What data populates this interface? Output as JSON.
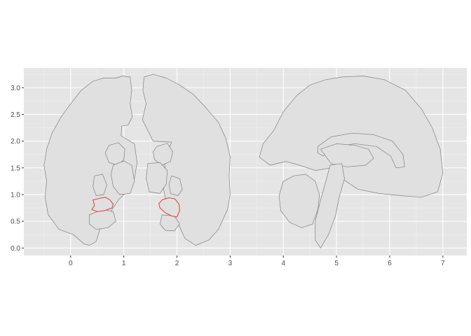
{
  "chart_data": {
    "type": "map",
    "title": "",
    "xlabel": "",
    "ylabel": "",
    "xlim": [
      -0.88,
      7.45
    ],
    "ylim": [
      -0.14,
      3.37
    ],
    "x_ticks": [
      0,
      1,
      2,
      3,
      4,
      5,
      6,
      7
    ],
    "y_ticks": [
      0.0,
      0.5,
      1.0,
      1.5,
      2.0,
      2.5,
      3.0
    ],
    "x_tick_labels": [
      "0",
      "1",
      "2",
      "3",
      "4",
      "5",
      "6",
      "7"
    ],
    "y_tick_labels": [
      "0.0",
      "0.5",
      "1.0",
      "1.5",
      "2.0",
      "2.5",
      "3.0"
    ],
    "grid": true,
    "legend": "none",
    "colors": {
      "panel": "#e5e5e5",
      "grid_major": "#ffffff",
      "grid_minor": "#f2f2f2",
      "region_fill": "#e0e0e0",
      "region_outline": "#808080",
      "highlight_outline": "#e8383b"
    },
    "views": [
      {
        "name": "coronal",
        "regions": [
          {
            "id": "left-hemisphere",
            "highlight": false,
            "points": [
              [
                0.42,
                3.12
              ],
              [
                0.62,
                3.18
              ],
              [
                0.85,
                3.18
              ],
              [
                0.98,
                3.22
              ],
              [
                1.12,
                3.2
              ],
              [
                1.15,
                2.95
              ],
              [
                1.12,
                2.7
              ],
              [
                1.16,
                2.45
              ],
              [
                1.08,
                2.3
              ],
              [
                0.96,
                2.28
              ],
              [
                0.95,
                2.1
              ],
              [
                1.2,
                1.95
              ],
              [
                1.25,
                1.6
              ],
              [
                1.2,
                1.3
              ],
              [
                1.05,
                1.05
              ],
              [
                0.9,
                0.9
              ],
              [
                0.78,
                0.72
              ],
              [
                0.7,
                0.5
              ],
              [
                0.55,
                0.35
              ],
              [
                0.48,
                0.12
              ],
              [
                0.35,
                0.05
              ],
              [
                0.25,
                0.08
              ],
              [
                0.05,
                0.25
              ],
              [
                -0.22,
                0.35
              ],
              [
                -0.42,
                0.62
              ],
              [
                -0.48,
                0.95
              ],
              [
                -0.45,
                1.25
              ],
              [
                -0.5,
                1.55
              ],
              [
                -0.45,
                1.85
              ],
              [
                -0.35,
                2.15
              ],
              [
                -0.18,
                2.45
              ],
              [
                0.0,
                2.7
              ],
              [
                0.2,
                2.95
              ]
            ]
          },
          {
            "id": "right-hemisphere",
            "highlight": false,
            "points": [
              [
                1.38,
                3.2
              ],
              [
                1.55,
                3.25
              ],
              [
                1.8,
                3.18
              ],
              [
                2.05,
                3.05
              ],
              [
                2.3,
                2.88
              ],
              [
                2.55,
                2.62
              ],
              [
                2.78,
                2.35
              ],
              [
                2.92,
                2.05
              ],
              [
                3.0,
                1.7
              ],
              [
                2.98,
                1.35
              ],
              [
                3.0,
                1.0
              ],
              [
                2.95,
                0.72
              ],
              [
                2.78,
                0.35
              ],
              [
                2.6,
                0.15
              ],
              [
                2.35,
                0.05
              ],
              [
                2.15,
                0.18
              ],
              [
                2.05,
                0.4
              ],
              [
                1.95,
                0.6
              ],
              [
                1.8,
                0.82
              ],
              [
                1.75,
                1.1
              ],
              [
                1.8,
                1.4
              ],
              [
                1.75,
                1.65
              ],
              [
                1.9,
                1.98
              ],
              [
                1.55,
                2.0
              ],
              [
                1.45,
                2.2
              ],
              [
                1.35,
                2.4
              ],
              [
                1.42,
                2.7
              ],
              [
                1.36,
                2.95
              ]
            ]
          },
          {
            "id": "left-caudate",
            "highlight": false,
            "points": [
              [
                0.72,
                1.92
              ],
              [
                0.9,
                1.97
              ],
              [
                1.02,
                1.85
              ],
              [
                1.0,
                1.65
              ],
              [
                0.88,
                1.55
              ],
              [
                0.72,
                1.6
              ],
              [
                0.65,
                1.78
              ]
            ]
          },
          {
            "id": "right-caudate",
            "highlight": false,
            "points": [
              [
                1.62,
                1.9
              ],
              [
                1.82,
                1.96
              ],
              [
                1.92,
                1.8
              ],
              [
                1.88,
                1.62
              ],
              [
                1.72,
                1.55
              ],
              [
                1.58,
                1.65
              ],
              [
                1.55,
                1.8
              ]
            ]
          },
          {
            "id": "left-thalamus",
            "highlight": false,
            "points": [
              [
                0.8,
                1.55
              ],
              [
                1.0,
                1.63
              ],
              [
                1.15,
                1.55
              ],
              [
                1.2,
                1.25
              ],
              [
                1.12,
                1.02
              ],
              [
                0.92,
                1.0
              ],
              [
                0.8,
                1.15
              ],
              [
                0.76,
                1.38
              ]
            ]
          },
          {
            "id": "right-thalamus",
            "highlight": false,
            "points": [
              [
                1.45,
                1.58
              ],
              [
                1.68,
                1.6
              ],
              [
                1.82,
                1.45
              ],
              [
                1.8,
                1.2
              ],
              [
                1.68,
                1.02
              ],
              [
                1.48,
                1.05
              ],
              [
                1.42,
                1.3
              ]
            ]
          },
          {
            "id": "left-putamen",
            "highlight": false,
            "points": [
              [
                0.45,
                1.35
              ],
              [
                0.6,
                1.38
              ],
              [
                0.68,
                1.18
              ],
              [
                0.62,
                1.0
              ],
              [
                0.48,
                0.98
              ],
              [
                0.42,
                1.15
              ]
            ]
          },
          {
            "id": "right-putamen",
            "highlight": false,
            "points": [
              [
                1.9,
                1.35
              ],
              [
                2.05,
                1.3
              ],
              [
                2.1,
                1.1
              ],
              [
                2.02,
                0.98
              ],
              [
                1.88,
                1.02
              ],
              [
                1.85,
                1.2
              ]
            ]
          },
          {
            "id": "left-hippocampus",
            "highlight": false,
            "points": [
              [
                0.35,
                0.62
              ],
              [
                0.6,
                0.72
              ],
              [
                0.8,
                0.68
              ],
              [
                0.85,
                0.5
              ],
              [
                0.7,
                0.38
              ],
              [
                0.48,
                0.35
              ],
              [
                0.35,
                0.45
              ]
            ]
          },
          {
            "id": "right-hippocampus",
            "highlight": false,
            "points": [
              [
                1.72,
                0.62
              ],
              [
                1.95,
                0.6
              ],
              [
                2.05,
                0.45
              ],
              [
                1.95,
                0.32
              ],
              [
                1.78,
                0.33
              ],
              [
                1.68,
                0.45
              ]
            ]
          },
          {
            "id": "left-amygdala",
            "highlight": true,
            "points": [
              [
                0.42,
                0.9
              ],
              [
                0.55,
                0.93
              ],
              [
                0.65,
                0.95
              ],
              [
                0.74,
                0.9
              ],
              [
                0.8,
                0.82
              ],
              [
                0.78,
                0.75
              ],
              [
                0.64,
                0.7
              ],
              [
                0.5,
                0.68
              ],
              [
                0.4,
                0.72
              ],
              [
                0.45,
                0.8
              ]
            ]
          },
          {
            "id": "right-amygdala",
            "highlight": true,
            "points": [
              [
                1.72,
                0.9
              ],
              [
                1.84,
                0.94
              ],
              [
                1.96,
                0.92
              ],
              [
                2.04,
                0.82
              ],
              [
                2.05,
                0.7
              ],
              [
                2.0,
                0.58
              ],
              [
                1.9,
                0.6
              ],
              [
                1.78,
                0.66
              ],
              [
                1.68,
                0.75
              ],
              [
                1.66,
                0.83
              ]
            ]
          }
        ]
      },
      {
        "name": "sagittal",
        "regions": [
          {
            "id": "cortex",
            "highlight": false,
            "points": [
              [
                4.0,
                2.55
              ],
              [
                4.25,
                2.85
              ],
              [
                4.5,
                3.05
              ],
              [
                4.8,
                3.15
              ],
              [
                5.1,
                3.2
              ],
              [
                5.5,
                3.22
              ],
              [
                5.9,
                3.15
              ],
              [
                6.3,
                2.95
              ],
              [
                6.6,
                2.6
              ],
              [
                6.8,
                2.25
              ],
              [
                6.95,
                1.85
              ],
              [
                7.0,
                1.4
              ],
              [
                6.9,
                1.05
              ],
              [
                6.6,
                0.95
              ],
              [
                6.2,
                0.98
              ],
              [
                5.8,
                1.02
              ],
              [
                5.4,
                1.1
              ],
              [
                5.1,
                1.3
              ],
              [
                4.9,
                1.5
              ],
              [
                4.6,
                1.45
              ],
              [
                4.3,
                1.55
              ],
              [
                4.05,
                1.62
              ],
              [
                3.75,
                1.55
              ],
              [
                3.55,
                1.7
              ],
              [
                3.62,
                1.95
              ],
              [
                3.82,
                2.2
              ]
            ]
          },
          {
            "id": "corpus-callosum",
            "highlight": false,
            "points": [
              [
                4.65,
                1.9
              ],
              [
                4.9,
                2.08
              ],
              [
                5.3,
                2.15
              ],
              [
                5.7,
                2.12
              ],
              [
                6.05,
                2.0
              ],
              [
                6.25,
                1.75
              ],
              [
                6.28,
                1.52
              ],
              [
                6.12,
                1.5
              ],
              [
                6.02,
                1.72
              ],
              [
                5.75,
                1.9
              ],
              [
                5.35,
                1.95
              ],
              [
                5.0,
                1.9
              ],
              [
                4.75,
                1.72
              ],
              [
                4.65,
                1.78
              ]
            ]
          },
          {
            "id": "thalamus",
            "highlight": false,
            "points": [
              [
                4.7,
                1.85
              ],
              [
                5.0,
                1.95
              ],
              [
                5.35,
                1.92
              ],
              [
                5.6,
                1.85
              ],
              [
                5.7,
                1.68
              ],
              [
                5.55,
                1.55
              ],
              [
                5.2,
                1.52
              ],
              [
                4.9,
                1.58
              ]
            ]
          },
          {
            "id": "brainstem",
            "highlight": false,
            "points": [
              [
                4.88,
                1.55
              ],
              [
                5.1,
                1.58
              ],
              [
                5.15,
                1.3
              ],
              [
                5.05,
                0.95
              ],
              [
                4.98,
                0.6
              ],
              [
                4.85,
                0.25
              ],
              [
                4.7,
                0.0
              ],
              [
                4.6,
                0.15
              ],
              [
                4.6,
                0.5
              ],
              [
                4.7,
                0.9
              ],
              [
                4.8,
                1.25
              ]
            ]
          },
          {
            "id": "cerebellum",
            "highlight": false,
            "points": [
              [
                4.0,
                1.25
              ],
              [
                4.2,
                1.35
              ],
              [
                4.42,
                1.38
              ],
              [
                4.6,
                1.25
              ],
              [
                4.68,
                1.0
              ],
              [
                4.65,
                0.72
              ],
              [
                4.55,
                0.45
              ],
              [
                4.35,
                0.38
              ],
              [
                4.12,
                0.48
              ],
              [
                3.95,
                0.7
              ],
              [
                3.92,
                0.98
              ]
            ]
          }
        ]
      }
    ]
  }
}
